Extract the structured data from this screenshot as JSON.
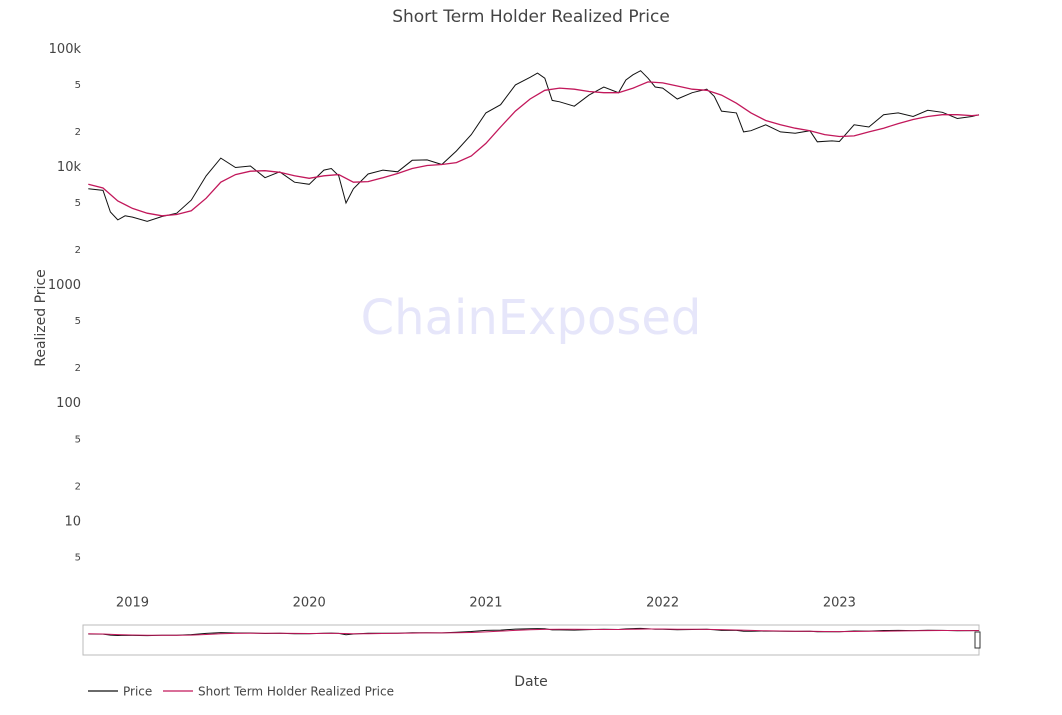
{
  "chart_data": {
    "type": "line",
    "title": "Short Term Holder Realized Price",
    "watermark": "ChainExposed",
    "x_label": "Date",
    "y_label": "Realized Price",
    "y_scale": "log",
    "grid": false,
    "legend_position": "bottom-left",
    "xlim": [
      2018.72,
      2023.79
    ],
    "xticks": [
      2019,
      2020,
      2021,
      2022,
      2023
    ],
    "ylim": [
      2.65,
      120000
    ],
    "yticks": [
      5,
      10,
      {
        "value": 20,
        "label": "2"
      },
      {
        "value": 50,
        "label": "5"
      },
      100,
      {
        "value": 200,
        "label": "2"
      },
      {
        "value": 500,
        "label": "5"
      },
      1000,
      {
        "value": 2000,
        "label": "2"
      },
      {
        "value": 5000,
        "label": "5"
      },
      {
        "value": 10000,
        "label": "10k"
      },
      {
        "value": 20000,
        "label": "2"
      },
      {
        "value": 50000,
        "label": "5"
      },
      {
        "value": 100000,
        "label": "100k"
      }
    ],
    "series": [
      {
        "name": "Price",
        "color": "#111111",
        "x": [
          2018.75,
          2018.833,
          2018.875,
          2018.917,
          2018.958,
          2019.0,
          2019.083,
          2019.167,
          2019.25,
          2019.333,
          2019.417,
          2019.5,
          2019.583,
          2019.667,
          2019.75,
          2019.833,
          2019.917,
          2020.0,
          2020.083,
          2020.125,
          2020.167,
          2020.208,
          2020.25,
          2020.333,
          2020.417,
          2020.5,
          2020.583,
          2020.667,
          2020.75,
          2020.833,
          2020.917,
          2021.0,
          2021.083,
          2021.167,
          2021.25,
          2021.292,
          2021.333,
          2021.375,
          2021.417,
          2021.5,
          2021.583,
          2021.667,
          2021.75,
          2021.792,
          2021.833,
          2021.875,
          2021.917,
          2021.958,
          2022.0,
          2022.083,
          2022.167,
          2022.25,
          2022.292,
          2022.333,
          2022.417,
          2022.458,
          2022.5,
          2022.583,
          2022.667,
          2022.75,
          2022.833,
          2022.875,
          2022.958,
          2023.0,
          2023.083,
          2023.167,
          2023.25,
          2023.333,
          2023.417,
          2023.5,
          2023.583,
          2023.667,
          2023.75,
          2023.79
        ],
        "values": [
          6600,
          6400,
          4200,
          3600,
          3900,
          3800,
          3500,
          3850,
          4100,
          5300,
          8500,
          12000,
          10000,
          10300,
          8200,
          9200,
          7500,
          7200,
          9500,
          9800,
          8500,
          5000,
          6600,
          8800,
          9500,
          9200,
          11500,
          11600,
          10600,
          13800,
          19000,
          29000,
          34000,
          50000,
          58000,
          63000,
          57000,
          37000,
          36000,
          33000,
          41000,
          48000,
          43000,
          55000,
          61000,
          66000,
          57000,
          48000,
          47000,
          38000,
          43000,
          46000,
          40000,
          30000,
          29000,
          20000,
          20500,
          23000,
          20000,
          19500,
          20500,
          16500,
          16800,
          16600,
          23000,
          22000,
          28000,
          29000,
          27000,
          30500,
          29300,
          26000,
          27000,
          28000
        ]
      },
      {
        "name": "Short Term Holder Realized Price",
        "color": "#c2185b",
        "x": [
          2018.75,
          2018.833,
          2018.917,
          2019.0,
          2019.083,
          2019.167,
          2019.25,
          2019.333,
          2019.417,
          2019.5,
          2019.583,
          2019.667,
          2019.75,
          2019.833,
          2019.917,
          2020.0,
          2020.083,
          2020.167,
          2020.25,
          2020.333,
          2020.417,
          2020.5,
          2020.583,
          2020.667,
          2020.75,
          2020.833,
          2020.917,
          2021.0,
          2021.083,
          2021.167,
          2021.25,
          2021.333,
          2021.417,
          2021.5,
          2021.583,
          2021.667,
          2021.75,
          2021.833,
          2021.917,
          2022.0,
          2022.083,
          2022.167,
          2022.25,
          2022.333,
          2022.417,
          2022.5,
          2022.583,
          2022.667,
          2022.75,
          2022.833,
          2022.917,
          2023.0,
          2023.083,
          2023.167,
          2023.25,
          2023.333,
          2023.417,
          2023.5,
          2023.583,
          2023.667,
          2023.75,
          2023.79
        ],
        "values": [
          7200,
          6700,
          5200,
          4500,
          4100,
          3900,
          4000,
          4300,
          5500,
          7500,
          8700,
          9300,
          9400,
          9100,
          8500,
          8100,
          8500,
          8700,
          7500,
          7600,
          8200,
          8900,
          9800,
          10400,
          10600,
          11000,
          12500,
          16000,
          22000,
          30000,
          38000,
          45000,
          47000,
          46000,
          44000,
          43000,
          43000,
          47000,
          53000,
          52000,
          49000,
          46000,
          45000,
          41000,
          35000,
          29000,
          25000,
          23000,
          21500,
          20500,
          19000,
          18300,
          18500,
          20000,
          21500,
          23500,
          25500,
          27000,
          28000,
          28000,
          27500,
          27800
        ]
      }
    ]
  }
}
